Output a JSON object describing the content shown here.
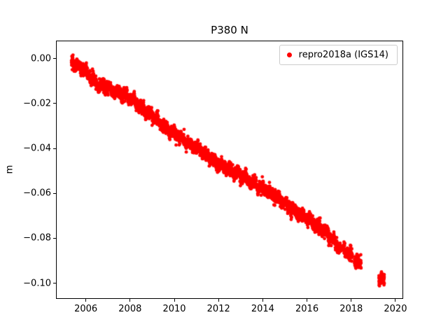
{
  "title": "P380 N",
  "axes": {
    "xlabel": "",
    "ylabel": "m"
  },
  "legend": {
    "entries": [
      {
        "label": "repro2018a (IGS14)",
        "color": "#ff0000",
        "marker": "dot"
      }
    ]
  },
  "chart_data": {
    "type": "scatter",
    "title": "P380 N",
    "xlabel": "",
    "ylabel": "m",
    "xlim": [
      2004.65,
      2020.35
    ],
    "ylim": [
      -0.107,
      0.008
    ],
    "xticks": [
      2006,
      2008,
      2010,
      2012,
      2014,
      2016,
      2018,
      2020
    ],
    "xtick_labels": [
      "2006",
      "2008",
      "2010",
      "2012",
      "2014",
      "2016",
      "2018",
      "2020"
    ],
    "yticks": [
      0.0,
      -0.02,
      -0.04,
      -0.06,
      -0.08,
      -0.1
    ],
    "ytick_labels": [
      "0.00",
      "−0.02",
      "−0.04",
      "−0.06",
      "−0.08",
      "−0.10"
    ],
    "grid": false,
    "legend_position": "upper right",
    "series": [
      {
        "name": "repro2018a (IGS14)",
        "color": "#ff0000",
        "marker_px": 2.4,
        "trend_anchors": [
          [
            2005.35,
            0.0
          ],
          [
            2005.5,
            -0.003
          ],
          [
            2005.75,
            -0.004
          ],
          [
            2006.0,
            -0.006
          ],
          [
            2006.3,
            -0.009
          ],
          [
            2006.6,
            -0.012
          ],
          [
            2007.0,
            -0.013
          ],
          [
            2007.3,
            -0.015
          ],
          [
            2007.7,
            -0.016
          ],
          [
            2008.0,
            -0.018
          ],
          [
            2008.4,
            -0.021
          ],
          [
            2008.8,
            -0.024
          ],
          [
            2009.2,
            -0.027
          ],
          [
            2009.6,
            -0.031
          ],
          [
            2010.0,
            -0.033
          ],
          [
            2010.4,
            -0.036
          ],
          [
            2010.8,
            -0.039
          ],
          [
            2011.2,
            -0.041
          ],
          [
            2011.6,
            -0.044
          ],
          [
            2012.0,
            -0.047
          ],
          [
            2012.4,
            -0.049
          ],
          [
            2012.8,
            -0.051
          ],
          [
            2013.2,
            -0.053
          ],
          [
            2013.6,
            -0.056
          ],
          [
            2014.0,
            -0.058
          ],
          [
            2014.4,
            -0.06
          ],
          [
            2014.8,
            -0.063
          ],
          [
            2015.2,
            -0.066
          ],
          [
            2015.6,
            -0.069
          ],
          [
            2016.0,
            -0.071
          ],
          [
            2016.4,
            -0.074
          ],
          [
            2016.8,
            -0.077
          ],
          [
            2017.1,
            -0.08
          ],
          [
            2017.4,
            -0.084
          ],
          [
            2017.8,
            -0.086
          ],
          [
            2018.0,
            -0.088
          ],
          [
            2018.3,
            -0.091
          ],
          [
            2018.45,
            -0.092
          ],
          [
            2019.25,
            -0.097
          ],
          [
            2019.5,
            -0.099
          ]
        ],
        "coverage_segments": [
          [
            2005.35,
            2017.1
          ],
          [
            2017.15,
            2017.55
          ],
          [
            2017.65,
            2018.05
          ],
          [
            2018.15,
            2018.45
          ],
          [
            2019.25,
            2019.5
          ]
        ],
        "sample_interval_years": 0.0038,
        "noise_std_m": 0.0013
      }
    ]
  }
}
